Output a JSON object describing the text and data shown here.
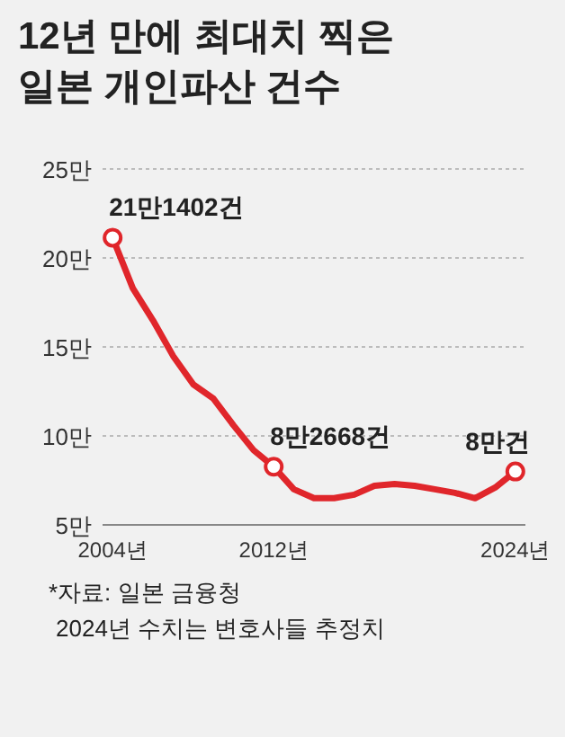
{
  "chart_data": {
    "type": "line",
    "title": "12년 만에 최대치 찍은\n일본 개인파산 건수",
    "x": [
      2004,
      2005,
      2006,
      2007,
      2008,
      2009,
      2010,
      2011,
      2012,
      2013,
      2014,
      2015,
      2016,
      2017,
      2018,
      2019,
      2020,
      2021,
      2022,
      2023,
      2024
    ],
    "series": [
      {
        "color": "#e0262b",
        "values": [
          21.1402,
          18.3,
          16.5,
          14.5,
          12.9,
          12.1,
          10.6,
          9.2,
          8.2668,
          7.0,
          6.5,
          6.5,
          6.7,
          7.2,
          7.3,
          7.2,
          7.0,
          6.8,
          6.5,
          7.1,
          8.0
        ],
        "value_labels": [
          "21만1402건",
          null,
          null,
          null,
          null,
          null,
          null,
          null,
          "8만2668건",
          null,
          null,
          null,
          null,
          null,
          null,
          null,
          null,
          null,
          null,
          null,
          "8만건"
        ]
      }
    ],
    "line_style": "solid",
    "grid": "y",
    "xlim": [
      2003.5,
      2024.5
    ],
    "xticks": [
      {
        "value": 2004,
        "label": "2004년"
      },
      {
        "value": 2012,
        "label": "2012년"
      },
      {
        "value": 2024,
        "label": "2024년"
      }
    ],
    "ylim": [
      5,
      25
    ],
    "yticks": [
      {
        "value": 5,
        "label": "5만"
      },
      {
        "value": 10,
        "label": "10만"
      },
      {
        "value": 15,
        "label": "15만"
      },
      {
        "value": 20,
        "label": "20만"
      },
      {
        "value": 25,
        "label": "25만"
      }
    ],
    "annotations": [
      "*자료: 일본 금융청",
      "2024년 수치는 변호사들 추정치"
    ]
  }
}
